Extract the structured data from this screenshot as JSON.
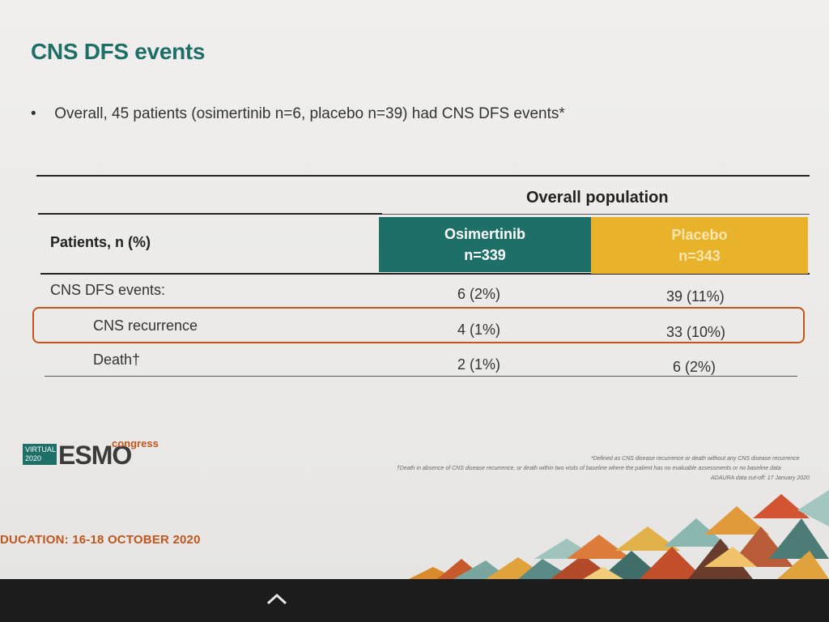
{
  "slide": {
    "title": "CNS DFS events",
    "bullet": "Overall, 45 patients (osimertinib n=6, placebo n=39) had CNS DFS events*",
    "table": {
      "group_header": "Overall population",
      "row_header": "Patients, n (%)",
      "columns": [
        {
          "name": "Osimertinib",
          "n": "n=339",
          "color": "#1f6f69"
        },
        {
          "name": "Placebo",
          "n": "n=343",
          "color": "#e8b22a"
        }
      ],
      "rows": [
        {
          "label": "CNS DFS events:",
          "osimertinib": "6 (2%)",
          "placebo": "39 (11%)",
          "highlighted": false
        },
        {
          "label": "CNS recurrence",
          "osimertinib": "4 (1%)",
          "placebo": "33 (10%)",
          "highlighted": true
        },
        {
          "label": "Death†",
          "osimertinib": "2 (1%)",
          "placebo": "6 (2%)",
          "highlighted": false
        }
      ]
    },
    "logo": {
      "virtual": "VIRTUAL 2020",
      "brand": "ESMO",
      "suffix": "congress"
    },
    "footnotes": [
      "*Defined as CNS disease recurrence or death without any CNS disease recurrence",
      "†Death in absence of CNS disease recurrence, or death within two visits of baseline where the patient has no evaluable assessments or no baseline data",
      "ADAURA data cut-off: 17 January 2020"
    ],
    "education_banner": "DUCATION: 16-18 OCTOBER 2020"
  },
  "colors": {
    "accent_teal": "#1f6f69",
    "accent_gold": "#e8b22a",
    "accent_orange": "#c0561c"
  },
  "taskbar": {
    "icon": "chevron-up-icon"
  }
}
